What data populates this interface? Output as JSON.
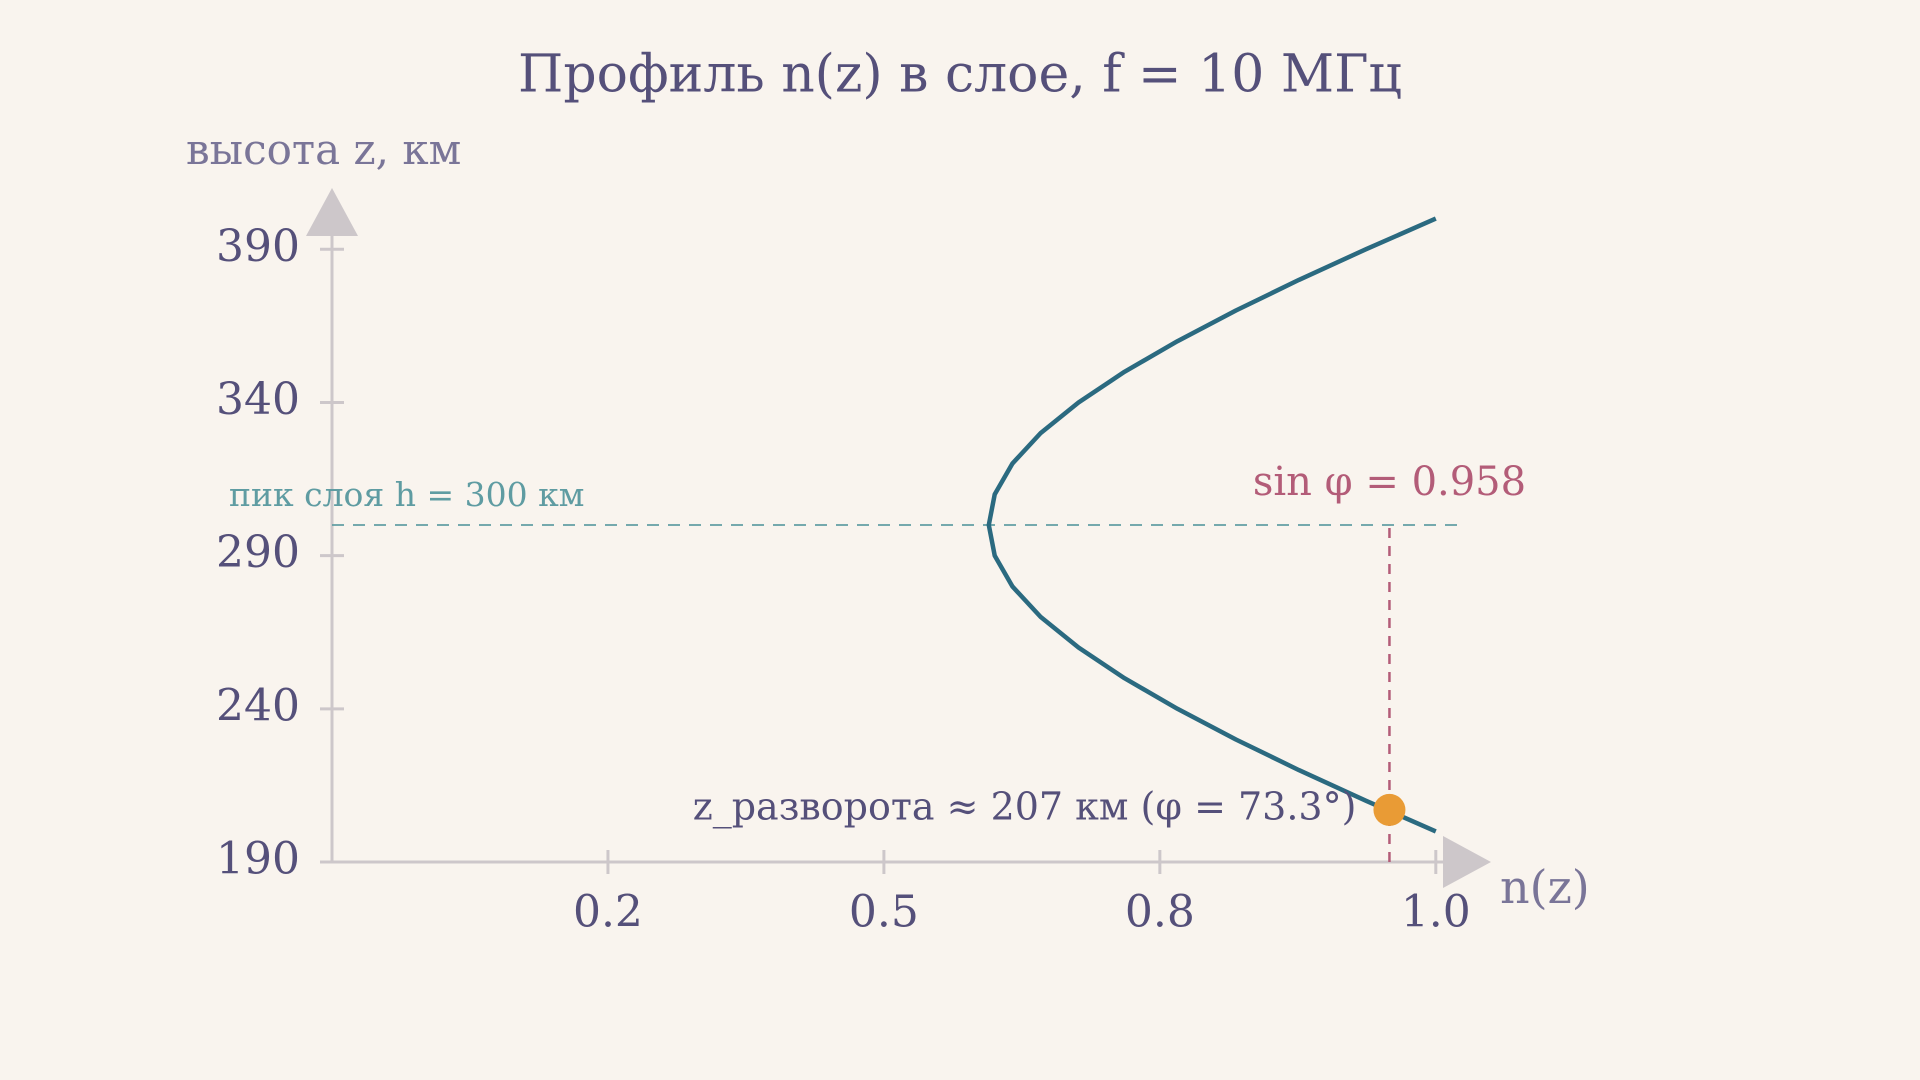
{
  "chart_data": {
    "type": "line",
    "title": "Профиль n(z) в слое, f = 10 МГц",
    "x_label": "n(z)",
    "y_label": "высота z, км",
    "x": [
      1,
      0.9366,
      0.876,
      0.8189,
      0.7659,
      0.718,
      0.6763,
      0.642,
      0.6163,
      0.6004,
      0.595,
      0.6004,
      0.6163,
      0.642,
      0.6763,
      0.718,
      0.7659,
      0.8189,
      0.876,
      0.9366,
      1
    ],
    "values": [
      200,
      210,
      220,
      230,
      240,
      250,
      260,
      270,
      280,
      290,
      300,
      310,
      320,
      330,
      340,
      350,
      360,
      370,
      380,
      390,
      400
    ],
    "color": "#2b6a80",
    "xlim": [
      0,
      1.05
    ],
    "ylim": [
      190,
      410
    ],
    "xticks": [
      {
        "value": 0.25,
        "label": "0.2"
      },
      0.5,
      {
        "value": 0.75,
        "label": "0.8"
      },
      {
        "value": 1,
        "label": "1.0"
      }
    ],
    "yticks": [
      190,
      240,
      290,
      340,
      390
    ],
    "annotations": {
      "peak": {
        "label": "пик слоя h = 300 км",
        "y": 300,
        "color": "#5f9ca2"
      },
      "turning": {
        "label": "sin φ = 0.958",
        "x": 0.958,
        "color": "#b35c78"
      },
      "point": {
        "label": "z_разворота ≈ 207 км (φ = 73.3°)",
        "x": 0.958,
        "y": 207,
        "color": "#e99b35"
      }
    }
  }
}
